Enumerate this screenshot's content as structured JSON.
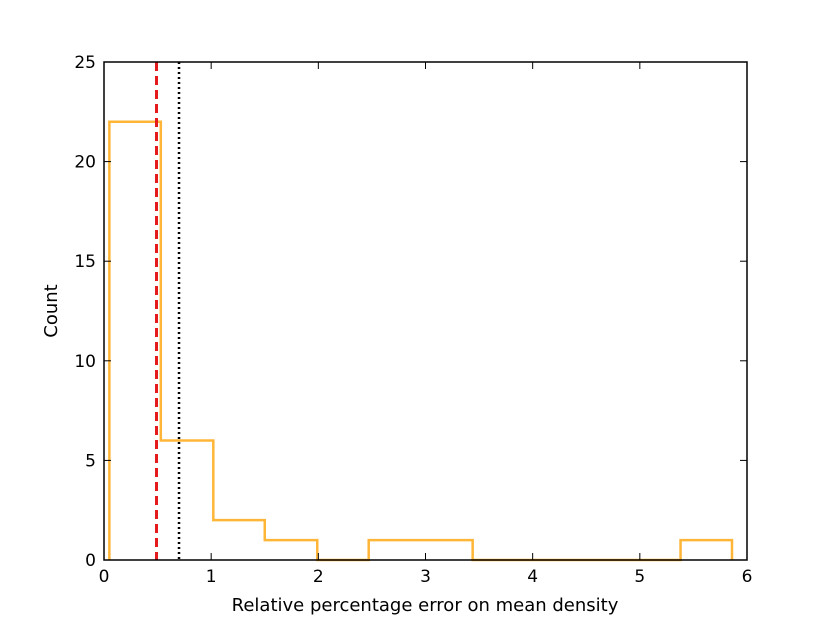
{
  "chart_data": {
    "type": "histogram",
    "title": "",
    "xlabel": "Relative percentage error on mean density",
    "ylabel": "Count",
    "xlim": [
      0,
      6
    ],
    "ylim": [
      0,
      25
    ],
    "xticks": [
      "0",
      "1",
      "2",
      "3",
      "4",
      "5",
      "6"
    ],
    "yticks": [
      "0",
      "5",
      "10",
      "15",
      "20",
      "25"
    ],
    "grid": false,
    "bins": [
      {
        "x0": 0.05,
        "x1": 0.53,
        "count": 22
      },
      {
        "x0": 0.53,
        "x1": 1.02,
        "count": 6
      },
      {
        "x0": 1.02,
        "x1": 1.5,
        "count": 2
      },
      {
        "x0": 1.5,
        "x1": 1.99,
        "count": 1
      },
      {
        "x0": 1.99,
        "x1": 2.47,
        "count": 0
      },
      {
        "x0": 2.47,
        "x1": 2.96,
        "count": 1
      },
      {
        "x0": 2.96,
        "x1": 3.44,
        "count": 1
      },
      {
        "x0": 3.44,
        "x1": 3.93,
        "count": 0
      },
      {
        "x0": 3.93,
        "x1": 4.41,
        "count": 0
      },
      {
        "x0": 4.41,
        "x1": 4.9,
        "count": 0
      },
      {
        "x0": 4.9,
        "x1": 5.38,
        "count": 0
      },
      {
        "x0": 5.38,
        "x1": 5.86,
        "count": 1
      }
    ],
    "vlines": [
      {
        "x": 0.49,
        "style": "dashed",
        "color": "#e41a1c"
      },
      {
        "x": 0.7,
        "style": "dotted",
        "color": "#000000"
      }
    ],
    "colors": {
      "histogram": "#ffb638",
      "frame": "#000000"
    }
  }
}
